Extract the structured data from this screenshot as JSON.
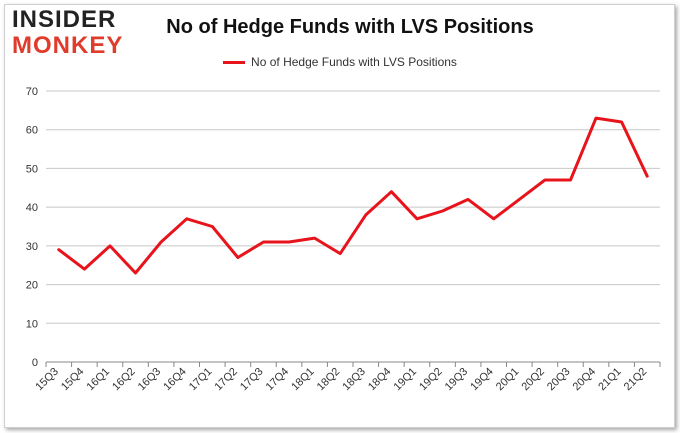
{
  "logo": {
    "line1": "INSIDER",
    "line2": "MONKEY"
  },
  "chart_data": {
    "type": "line",
    "title": "No of Hedge Funds with LVS Positions",
    "legend": "top-center",
    "grid": true,
    "ylim": [
      0,
      70
    ],
    "yticks": [
      0,
      10,
      20,
      30,
      40,
      50,
      60,
      70
    ],
    "categories": [
      "15Q3",
      "15Q4",
      "16Q1",
      "16Q2",
      "16Q3",
      "16Q4",
      "17Q1",
      "17Q2",
      "17Q3",
      "17Q4",
      "18Q1",
      "18Q2",
      "18Q3",
      "18Q4",
      "19Q1",
      "19Q2",
      "19Q3",
      "19Q4",
      "20Q1",
      "20Q2",
      "20Q3",
      "20Q4",
      "21Q1",
      "21Q2"
    ],
    "series": [
      {
        "name": "No of Hedge Funds with LVS Positions",
        "color": "#e8141c",
        "values": [
          29,
          24,
          30,
          23,
          31,
          37,
          35,
          27,
          31,
          31,
          32,
          28,
          38,
          44,
          37,
          39,
          42,
          37,
          42,
          47,
          47,
          63,
          62,
          48
        ]
      }
    ]
  }
}
